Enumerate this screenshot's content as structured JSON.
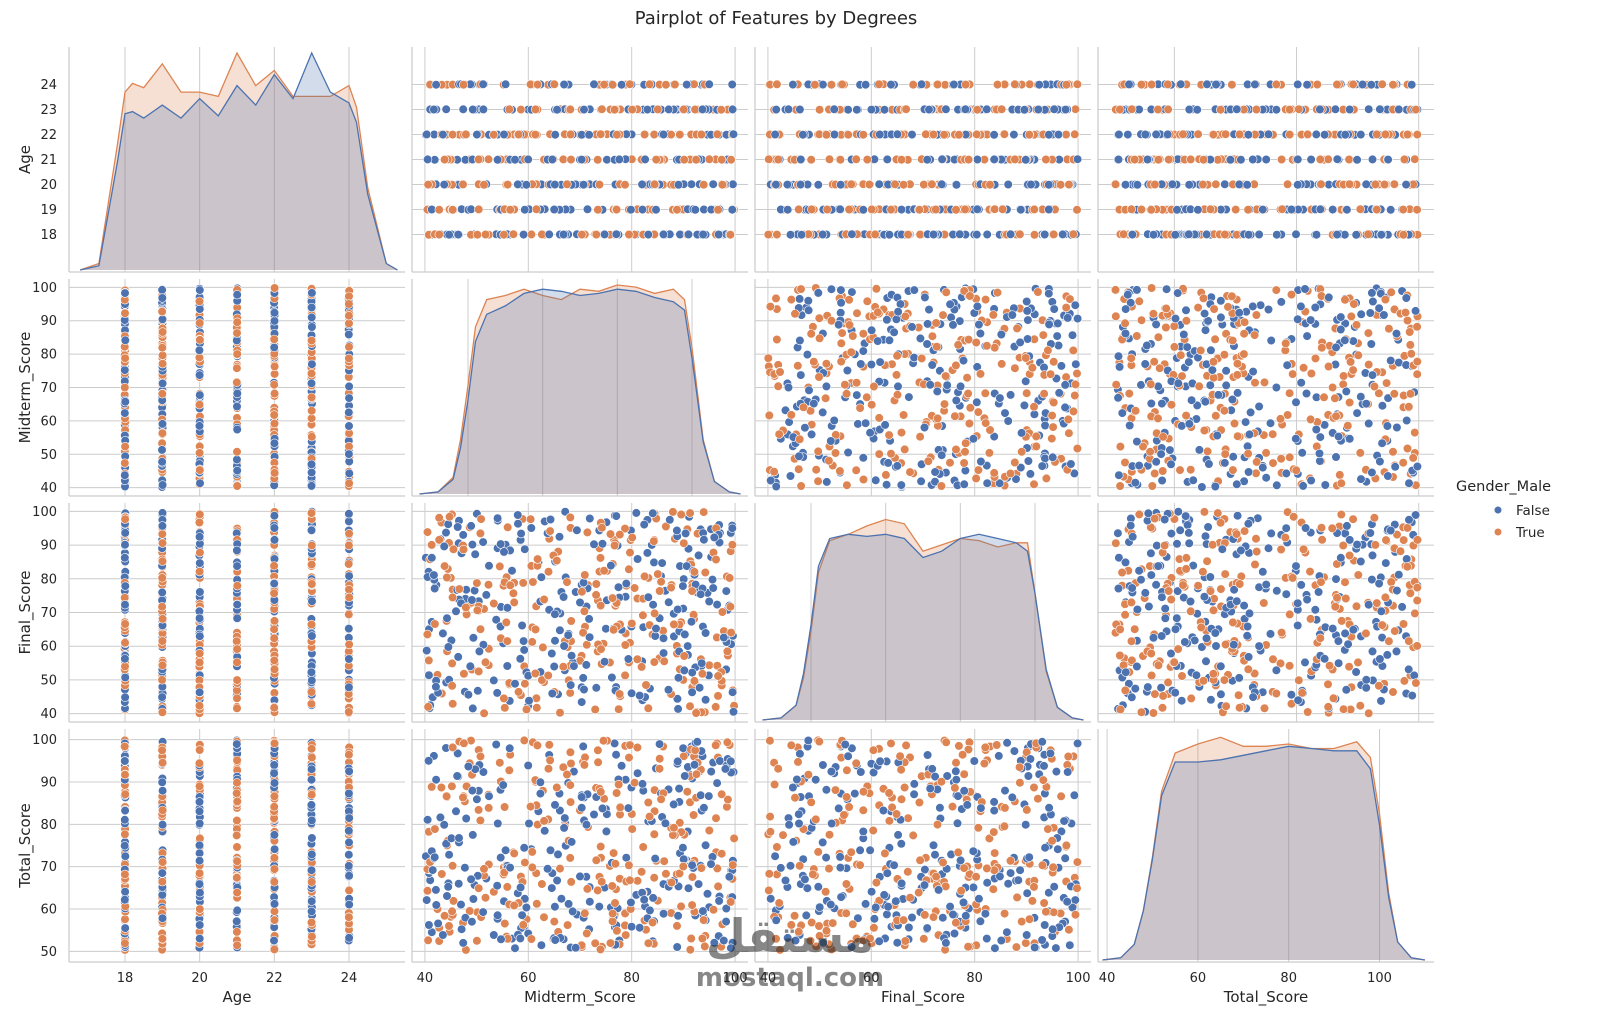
{
  "chart_data": {
    "type": "scatter",
    "kind": "pairplot",
    "title": "Pairplot of Features by Degrees",
    "variables": [
      "Age",
      "Midterm_Score",
      "Final_Score",
      "Total_Score"
    ],
    "hue": {
      "title": "Gender_Male",
      "levels": [
        {
          "name": "False",
          "color": "#4c72b0"
        },
        {
          "name": "True",
          "color": "#dd8452"
        }
      ]
    },
    "axes": {
      "Age": {
        "range": [
          16.5,
          25.5
        ],
        "ticks": [
          18,
          19,
          20,
          21,
          22,
          23,
          24
        ],
        "diag_ticks": [
          18,
          20,
          22,
          24
        ]
      },
      "Midterm_Score": {
        "range": [
          37.5,
          102.5
        ],
        "ticks": [
          40,
          50,
          60,
          70,
          80,
          90,
          100
        ],
        "diag_ticks": [
          40,
          60,
          80,
          100
        ]
      },
      "Final_Score": {
        "range": [
          37.5,
          102.5
        ],
        "ticks": [
          40,
          50,
          60,
          70,
          80,
          90,
          100
        ],
        "diag_ticks": [
          40,
          60,
          80,
          100
        ]
      },
      "Total_Score": {
        "range": [
          47.5,
          102.5
        ],
        "ticks": [
          50,
          60,
          70,
          80,
          90,
          100
        ],
        "diag_ticks": [
          40,
          60,
          80,
          100
        ]
      }
    },
    "diag_x_ranges": {
      "Age": [
        16.5,
        25.5
      ],
      "Midterm_Score": [
        25,
        115
      ],
      "Final_Score": [
        25,
        115
      ],
      "Total_Score": [
        38,
        112
      ]
    },
    "diagonal_kde": {
      "Age": {
        "x": [
          16.8,
          17.3,
          17.8,
          18.0,
          18.2,
          18.5,
          19.0,
          19.5,
          20.0,
          20.5,
          21.0,
          21.5,
          22.0,
          22.5,
          23.0,
          23.5,
          24.0,
          24.2,
          24.5,
          25.0,
          25.3
        ],
        "False": [
          0.0,
          0.02,
          0.5,
          0.72,
          0.73,
          0.7,
          0.76,
          0.7,
          0.79,
          0.71,
          0.85,
          0.76,
          0.9,
          0.79,
          1.0,
          0.82,
          0.77,
          0.68,
          0.35,
          0.03,
          0.0
        ],
        "True": [
          0.0,
          0.03,
          0.58,
          0.82,
          0.86,
          0.84,
          0.95,
          0.82,
          0.82,
          0.8,
          1.0,
          0.85,
          0.92,
          0.8,
          0.8,
          0.8,
          0.85,
          0.75,
          0.38,
          0.03,
          0.0
        ]
      },
      "Midterm_Score": {
        "x": [
          27,
          32,
          36,
          38,
          40,
          42,
          45,
          50,
          55,
          60,
          65,
          70,
          75,
          80,
          85,
          90,
          95,
          98,
          100,
          103,
          106,
          110,
          113
        ],
        "False": [
          0.0,
          0.01,
          0.07,
          0.22,
          0.45,
          0.73,
          0.86,
          0.9,
          0.96,
          0.98,
          0.97,
          0.95,
          0.96,
          0.98,
          0.97,
          0.94,
          0.92,
          0.88,
          0.65,
          0.25,
          0.06,
          0.01,
          0.0
        ],
        "True": [
          0.0,
          0.01,
          0.08,
          0.26,
          0.52,
          0.8,
          0.93,
          0.95,
          0.98,
          0.95,
          0.93,
          0.98,
          0.97,
          1.0,
          0.99,
          0.96,
          0.98,
          0.93,
          0.7,
          0.26,
          0.06,
          0.01,
          0.0
        ]
      },
      "Final_Score": {
        "x": [
          27,
          32,
          36,
          38,
          40,
          42,
          45,
          50,
          55,
          60,
          65,
          70,
          75,
          80,
          85,
          90,
          95,
          98,
          100,
          103,
          106,
          110,
          113
        ],
        "False": [
          0.0,
          0.01,
          0.07,
          0.22,
          0.45,
          0.73,
          0.86,
          0.88,
          0.87,
          0.88,
          0.86,
          0.77,
          0.8,
          0.86,
          0.88,
          0.86,
          0.84,
          0.8,
          0.6,
          0.24,
          0.06,
          0.01,
          0.0
        ],
        "True": [
          0.0,
          0.01,
          0.07,
          0.2,
          0.42,
          0.7,
          0.85,
          0.88,
          0.92,
          0.95,
          0.93,
          0.8,
          0.83,
          0.86,
          0.85,
          0.82,
          0.84,
          0.84,
          0.6,
          0.23,
          0.06,
          0.01,
          0.0
        ]
      },
      "Total_Score": {
        "x": [
          39,
          43,
          46,
          48,
          50,
          52,
          55,
          60,
          65,
          70,
          75,
          80,
          85,
          90,
          95,
          98,
          100,
          102,
          104,
          107,
          110
        ],
        "False": [
          0.0,
          0.01,
          0.07,
          0.22,
          0.45,
          0.73,
          0.88,
          0.88,
          0.89,
          0.91,
          0.93,
          0.95,
          0.94,
          0.93,
          0.93,
          0.85,
          0.6,
          0.28,
          0.08,
          0.01,
          0.0
        ],
        "True": [
          0.0,
          0.01,
          0.07,
          0.22,
          0.46,
          0.75,
          0.92,
          0.96,
          0.99,
          0.95,
          0.95,
          0.96,
          0.94,
          0.94,
          0.97,
          0.9,
          0.65,
          0.3,
          0.08,
          0.01,
          0.0
        ]
      }
    },
    "scatter_value_ranges": {
      "Age": {
        "values": [
          18,
          19,
          20,
          21,
          22,
          23,
          24
        ],
        "discrete": true
      },
      "Midterm_Score": {
        "min": 40,
        "max": 100
      },
      "Final_Score": {
        "min": 40,
        "max": 100
      },
      "Total_Score": {
        "min": 50,
        "max": 100
      }
    },
    "points_per_group": 260,
    "legend_position": "center-right",
    "grid": true
  },
  "watermark": {
    "arabic": "مستقل",
    "latin": "mostaql.com"
  }
}
